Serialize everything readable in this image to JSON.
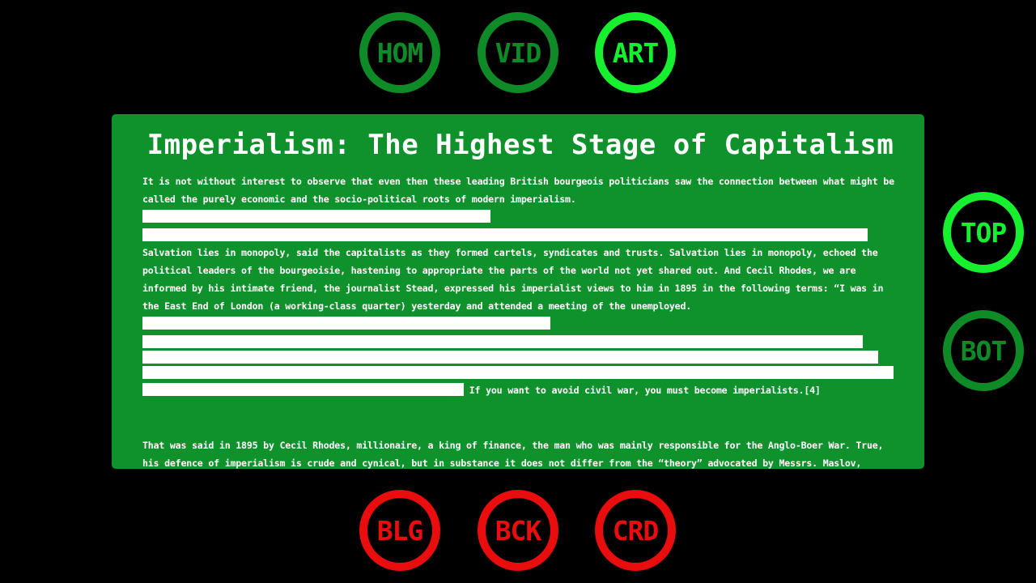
{
  "nav_top": {
    "home_label": "HOM",
    "video_label": "VID",
    "article_label": "ART"
  },
  "nav_side": {
    "top_label": "TOP",
    "bottom_label": "BOT"
  },
  "nav_bottom": {
    "blog_label": "BLG",
    "back_label": "BCK",
    "credits_label": "CRD"
  },
  "article": {
    "title": "Imperialism: The Highest Stage of Capitalism",
    "para1": "It is not without interest to observe that even then these leading British bourgeois politicians saw the connection between what might be called the purely economic and the socio-political roots of modern imperialism.",
    "para2": "Salvation lies in monopoly, said the capitalists as they formed cartels, syndicates and trusts. Salvation lies in monopoly, echoed the political leaders of the bourgeoisie, hastening to appropriate the parts of the world not yet shared out. And Cecil Rhodes, we are informed by his intimate friend, the journalist Stead, expressed his imperialist views to him in 1895 in the following terms: “I was in the East End of London (a working-class quarter) yesterday and attended a meeting of the unemployed.",
    "para2_tail": "If you want to avoid civil war, you must become imperialists.[4]",
    "para3": "That was said in 1895 by Cecil Rhodes, millionaire, a king of finance, the man who was mainly responsible for the Anglo-Boer War. True, his defence of imperialism is crude and cynical, but in substance it does not differ from the “theory” advocated by Messrs. Maslov, Südekum, Potresov, David, the founder of Russian Marxism and others."
  },
  "colors": {
    "background": "#000000",
    "panel": "#0f922c",
    "nav_dim": "#0e8a26",
    "nav_active": "#17f02f",
    "nav_red": "#e90d0d",
    "redaction": "#ffffff"
  }
}
